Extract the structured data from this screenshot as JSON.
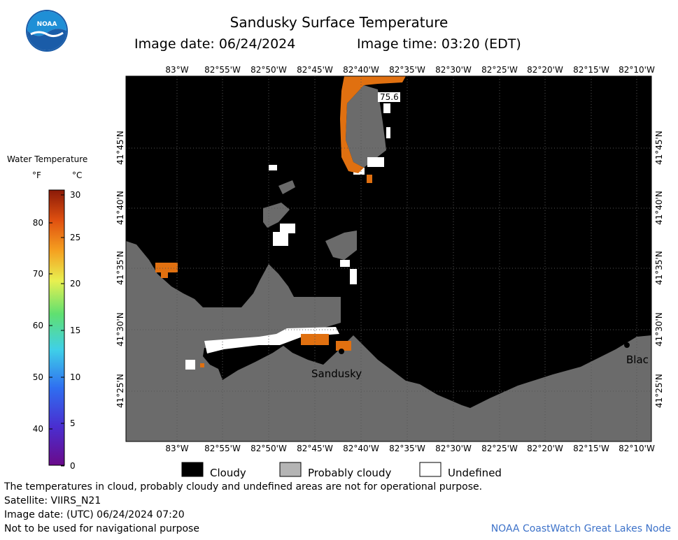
{
  "header": {
    "title": "Sandusky Surface Temperature",
    "image_date": "Image date: 06/24/2024",
    "image_time": "Image time: 03:20 (EDT)",
    "logo_text": "NOAA"
  },
  "map": {
    "lon_top": [
      "83°W",
      "82°55'W",
      "82°50'W",
      "82°45'W",
      "82°40'W",
      "82°35'W",
      "82°30'W",
      "82°25'W",
      "82°20'W",
      "82°15'W",
      "82°10'W"
    ],
    "lon_bottom": [
      "83°W",
      "82°55'W",
      "82°50'W",
      "82°45'W",
      "82°40'W",
      "82°35'W",
      "82°30'W",
      "82°25'W",
      "82°20'W",
      "82°15'W",
      "82°10'W"
    ],
    "lat": [
      "41°45'N",
      "41°40'N",
      "41°35'N",
      "41°30'N",
      "41°25'N"
    ],
    "place_sandusky": "Sandusky",
    "place_blac": "Blac",
    "temp_label": "75.6",
    "colors": {
      "cloudy": "#000000",
      "probably_cloudy": "#6b6b6b",
      "undefined": "#ffffff",
      "warm": "#e07010"
    }
  },
  "legend": {
    "title": "Water Temperature",
    "unit_f": "°F",
    "unit_c": "°C",
    "f_ticks": [
      "80",
      "70",
      "60",
      "50",
      "40"
    ],
    "c_ticks": [
      "30",
      "25",
      "20",
      "15",
      "10",
      "5",
      "0"
    ]
  },
  "key": {
    "cloudy": "Cloudy",
    "probably_cloudy": "Probably cloudy",
    "undefined": "Undefined"
  },
  "footer": {
    "note": "The temperatures in cloud, probably cloudy and undefined areas are not for operational purpose.",
    "satellite": "Satellite: VIIRS_N21",
    "utc_date": "Image date: (UTC) 06/24/2024  07:20",
    "nav": "Not to be used for navigational purpose",
    "credit": "NOAA CoastWatch Great Lakes Node"
  }
}
